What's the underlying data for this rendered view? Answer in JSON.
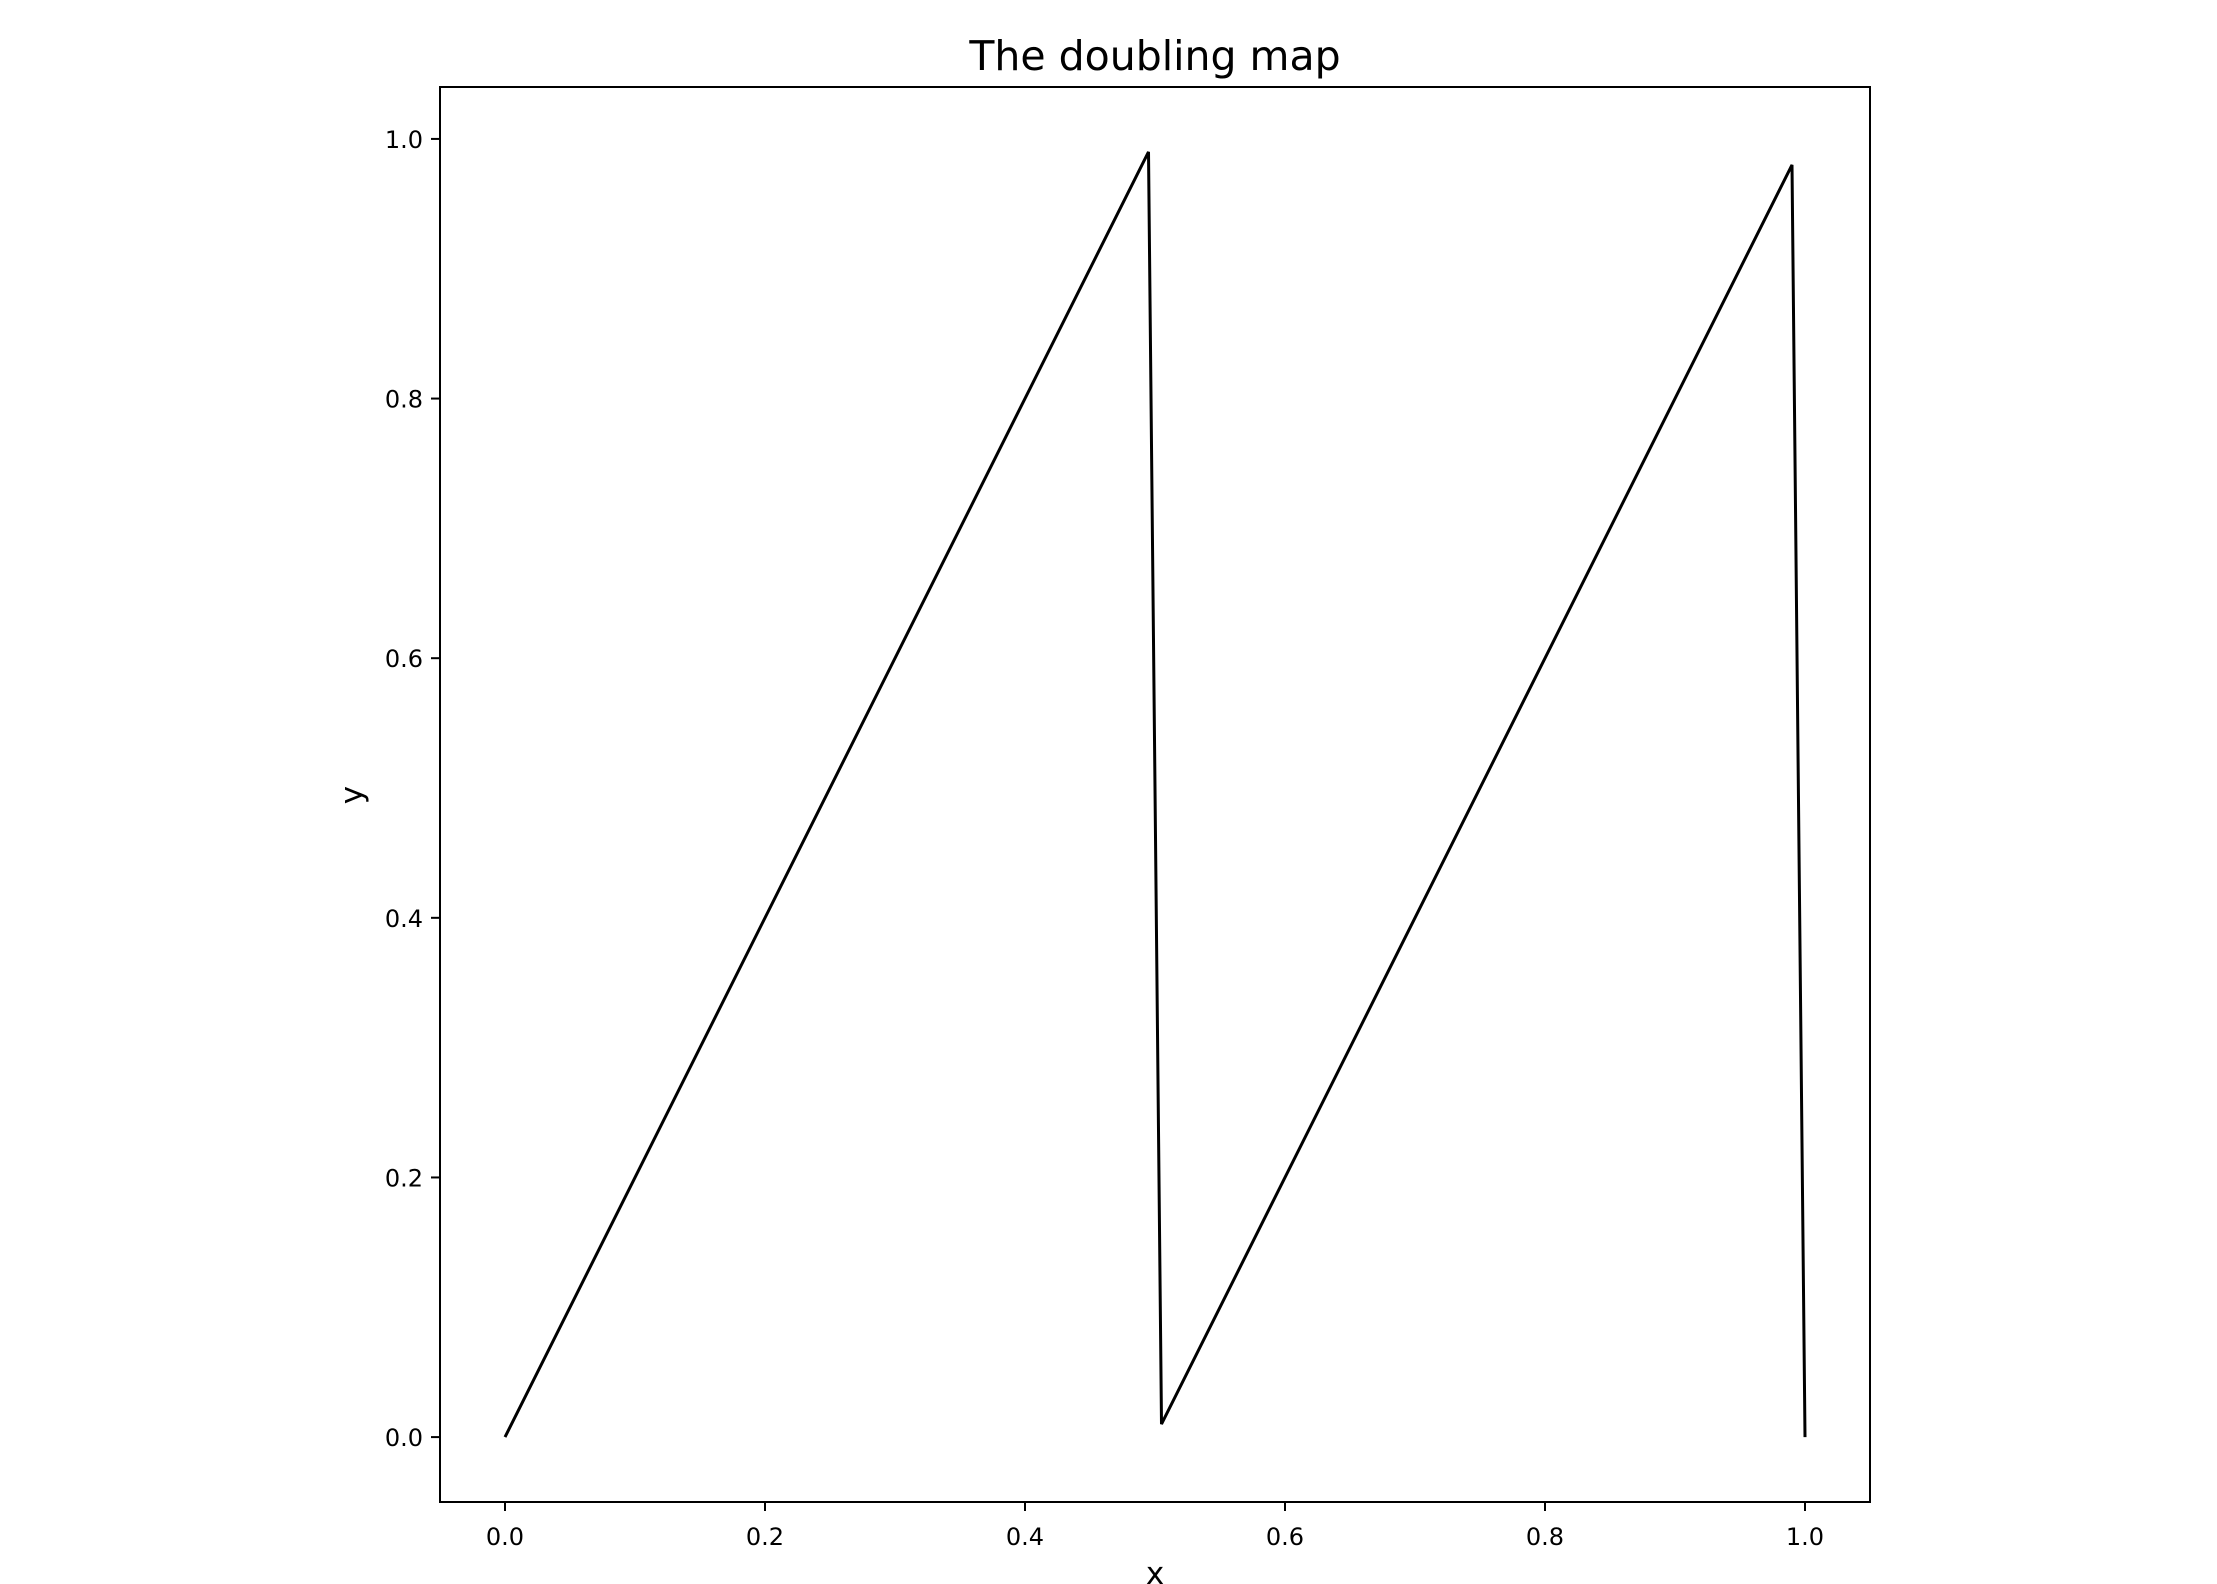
{
  "chart_data": {
    "type": "line",
    "title": "The doubling map",
    "xlabel": "x",
    "ylabel": "y",
    "xlim": [
      -0.05,
      1.05
    ],
    "ylim": [
      -0.05,
      1.04
    ],
    "xticks": [
      0.0,
      0.2,
      0.4,
      0.6,
      0.8,
      1.0
    ],
    "xtick_labels": [
      "0.0",
      "0.2",
      "0.4",
      "0.6",
      "0.8",
      "1.0"
    ],
    "yticks": [
      0.0,
      0.2,
      0.4,
      0.6,
      0.8,
      1.0
    ],
    "ytick_labels": [
      "0.0",
      "0.2",
      "0.4",
      "0.6",
      "0.8",
      "1.0"
    ],
    "grid": false,
    "series": [
      {
        "color": "#000000",
        "x": [
          0.0,
          0.495,
          0.505,
          0.99,
          1.0
        ],
        "y": [
          0.0,
          0.99,
          0.01,
          0.98,
          0.0
        ]
      }
    ]
  }
}
